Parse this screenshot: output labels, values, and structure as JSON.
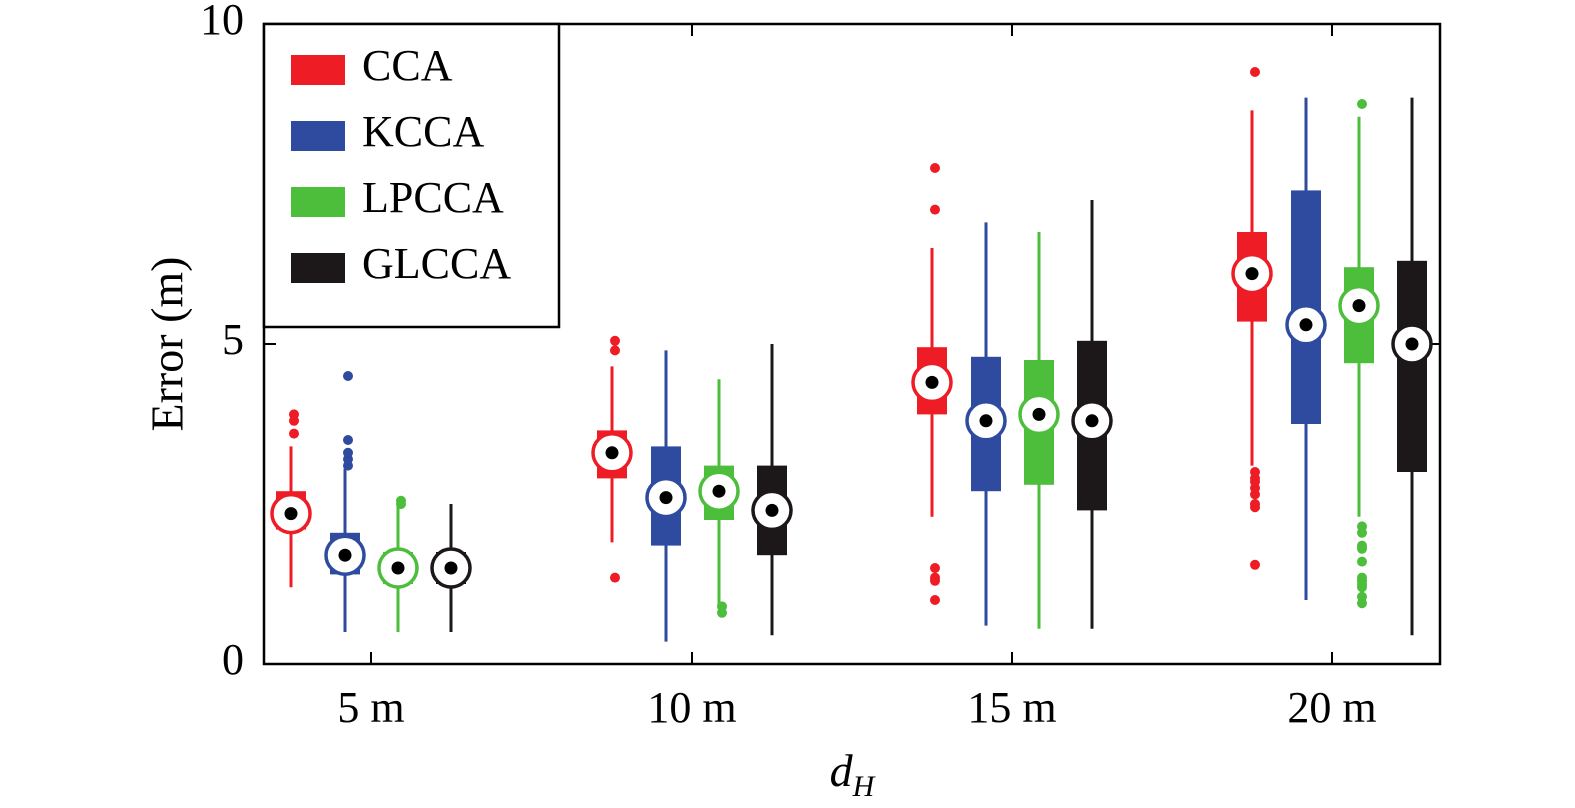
{
  "chart_data": {
    "type": "boxplot",
    "xlabel": "d",
    "xlabel_subscript": "H",
    "ylabel": "Error (m)",
    "ylim": [
      0,
      10
    ],
    "yticks": [
      0,
      5,
      10
    ],
    "grid": false,
    "legend_position": "top-left",
    "categories": [
      "5 m",
      "10 m",
      "15 m",
      "20 m"
    ],
    "series": [
      {
        "name": "CCA",
        "color": "#ee1c25",
        "stats": [
          {
            "whisker_low": 1.2,
            "q1": 2.1,
            "q3": 2.7,
            "whisker_high": 3.4,
            "marker": 2.35,
            "outliers": [
              3.6,
              3.8,
              3.9
            ]
          },
          {
            "whisker_low": 1.9,
            "q1": 2.9,
            "q3": 3.65,
            "whisker_high": 4.65,
            "marker": 3.3,
            "outliers": [
              1.35,
              4.9,
              5.05
            ]
          },
          {
            "whisker_low": 2.3,
            "q1": 3.9,
            "q3": 4.95,
            "whisker_high": 6.5,
            "marker": 4.4,
            "outliers": [
              1.0,
              1.3,
              1.35,
              1.5,
              7.1,
              7.75
            ]
          },
          {
            "whisker_low": 3.1,
            "q1": 5.35,
            "q3": 6.75,
            "whisker_high": 8.65,
            "marker": 6.1,
            "outliers": [
              1.55,
              2.45,
              2.5,
              2.65,
              2.75,
              2.85,
              2.9,
              3.0,
              9.25
            ]
          }
        ]
      },
      {
        "name": "KCCA",
        "color": "#2e4b9f",
        "stats": [
          {
            "whisker_low": 0.5,
            "q1": 1.4,
            "q3": 2.05,
            "whisker_high": 3.05,
            "marker": 1.7,
            "outliers": [
              3.1,
              3.2,
              3.3,
              3.5,
              4.5
            ]
          },
          {
            "whisker_low": 0.35,
            "q1": 1.85,
            "q3": 3.4,
            "whisker_high": 4.9,
            "marker": 2.6,
            "outliers": []
          },
          {
            "whisker_low": 0.6,
            "q1": 2.7,
            "q3": 4.8,
            "whisker_high": 6.9,
            "marker": 3.8,
            "outliers": []
          },
          {
            "whisker_low": 1.0,
            "q1": 3.75,
            "q3": 7.4,
            "whisker_high": 8.85,
            "marker": 5.3,
            "outliers": []
          }
        ]
      },
      {
        "name": "LPCCA",
        "color": "#4cbe3c",
        "stats": [
          {
            "whisker_low": 0.5,
            "q1": 1.25,
            "q3": 1.75,
            "whisker_high": 2.5,
            "marker": 1.5,
            "outliers": [
              2.5,
              2.55
            ]
          },
          {
            "whisker_low": 0.9,
            "q1": 2.25,
            "q3": 3.1,
            "whisker_high": 4.45,
            "marker": 2.7,
            "outliers": [
              0.8,
              0.9
            ]
          },
          {
            "whisker_low": 0.55,
            "q1": 2.8,
            "q3": 4.75,
            "whisker_high": 6.75,
            "marker": 3.9,
            "outliers": []
          },
          {
            "whisker_low": 2.3,
            "q1": 4.7,
            "q3": 6.2,
            "whisker_high": 8.55,
            "marker": 5.6,
            "outliers": [
              0.95,
              1.05,
              1.2,
              1.25,
              1.3,
              1.35,
              1.6,
              1.8,
              1.85,
              2.05,
              2.15,
              8.75
            ]
          }
        ]
      },
      {
        "name": "GLCCA",
        "color": "#1c1718",
        "stats": [
          {
            "whisker_low": 0.5,
            "q1": 1.25,
            "q3": 1.75,
            "whisker_high": 2.5,
            "marker": 1.5,
            "outliers": []
          },
          {
            "whisker_low": 0.45,
            "q1": 1.7,
            "q3": 3.1,
            "whisker_high": 5.0,
            "marker": 2.4,
            "outliers": []
          },
          {
            "whisker_low": 0.55,
            "q1": 2.4,
            "q3": 5.05,
            "whisker_high": 7.25,
            "marker": 3.8,
            "outliers": []
          },
          {
            "whisker_low": 0.45,
            "q1": 3.0,
            "q3": 6.3,
            "whisker_high": 8.85,
            "marker": 5.0,
            "outliers": []
          }
        ]
      }
    ]
  }
}
